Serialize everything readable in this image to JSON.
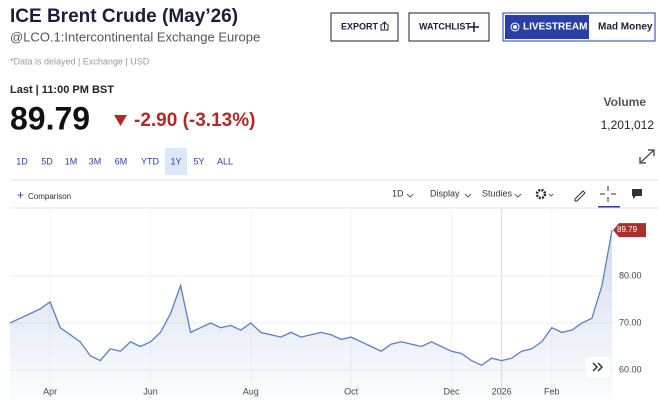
{
  "header": {
    "title": "ICE Brent Crude (May’26)",
    "subtitle": "@LCO.1:Intercontinental Exchange Europe",
    "note": "*Data is delayed | Exchange | USD"
  },
  "buttons": {
    "export": "EXPORT",
    "watchlist": "WATCHLIST",
    "livestream": "LIVESTREAM",
    "mad_money": "Mad Money"
  },
  "quote": {
    "time": "Last | 11:00 PM BST",
    "price": "89.79",
    "change": "-2.90 (-3.13%)",
    "volume_label": "Volume",
    "volume": "1,201,012"
  },
  "ranges": {
    "items": [
      "1D",
      "5D",
      "1M",
      "3M",
      "6M",
      "YTD",
      "1Y",
      "5Y",
      "ALL"
    ],
    "selected": "1Y"
  },
  "toolbar": {
    "comparison": "Comparison",
    "interval": "1D",
    "display": "Display",
    "studies": "Studies"
  },
  "chart": {
    "type": "line",
    "color": "#5b7fc0",
    "categories": [
      null,
      null,
      null,
      null,
      "Apr",
      null,
      null,
      null,
      null,
      null,
      null,
      null,
      null,
      null,
      "Jun",
      null,
      null,
      null,
      null,
      null,
      null,
      null,
      null,
      null,
      "Aug",
      null,
      null,
      null,
      null,
      null,
      null,
      null,
      null,
      null,
      "Oct",
      null,
      null,
      null,
      null,
      null,
      null,
      null,
      null,
      null,
      "Dec",
      null,
      null,
      null,
      null,
      "2026",
      null,
      null,
      null,
      null,
      "Feb",
      null,
      null,
      null,
      null,
      null,
      null
    ],
    "values": [
      70,
      71,
      72,
      73,
      74.5,
      69,
      67.5,
      66,
      63,
      62,
      64.5,
      64,
      66,
      65,
      66,
      68,
      72,
      78,
      68,
      69,
      70,
      69,
      69.5,
      68.5,
      70,
      68,
      67.5,
      67,
      68,
      67,
      67.5,
      68,
      67.5,
      66.5,
      67,
      66,
      65,
      64,
      65.5,
      66,
      65.5,
      65,
      66,
      65,
      64,
      63.5,
      62,
      61,
      62.5,
      62,
      62.5,
      64,
      64.5,
      66,
      69,
      68,
      68.5,
      70,
      71,
      78,
      89.79
    ],
    "ylim": [
      53.6,
      94.5
    ],
    "yticks": [
      {
        "value": 60,
        "label": "60.00"
      },
      {
        "value": 70,
        "label": "70.00"
      },
      {
        "value": 80,
        "label": "80.00"
      }
    ],
    "grid": true
  }
}
